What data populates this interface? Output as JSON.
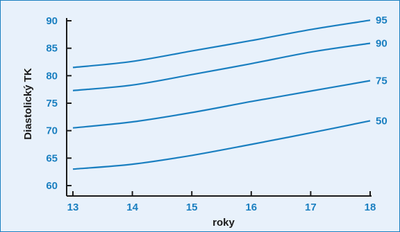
{
  "chart_data": {
    "type": "line",
    "title": "",
    "xlabel": "roky",
    "ylabel": "Diastolický TK",
    "xlim": [
      13,
      18
    ],
    "ylim": [
      58,
      92
    ],
    "x_ticks": [
      "13",
      "14",
      "15",
      "16",
      "17",
      "18"
    ],
    "y_ticks": [
      "60",
      "65",
      "70",
      "75",
      "80",
      "85",
      "90"
    ],
    "grid": false,
    "legend": "none",
    "colors": {
      "line": "#1a7fc0",
      "tick_text": "#1a7fc0",
      "axis": "#1a1a1a",
      "background": "#e8f1fb",
      "border": "#1a7fc0"
    },
    "x": [
      13,
      14,
      15,
      16,
      17,
      18
    ],
    "series": [
      {
        "name": "95",
        "values": [
          81.5,
          82.6,
          84.5,
          86.4,
          88.4,
          90.1
        ]
      },
      {
        "name": "90",
        "values": [
          77.3,
          78.3,
          80.2,
          82.2,
          84.3,
          85.9
        ]
      },
      {
        "name": "75",
        "values": [
          70.5,
          71.6,
          73.3,
          75.3,
          77.2,
          79.1
        ]
      },
      {
        "name": "50",
        "values": [
          63.0,
          63.9,
          65.5,
          67.5,
          69.6,
          71.8
        ]
      }
    ]
  }
}
